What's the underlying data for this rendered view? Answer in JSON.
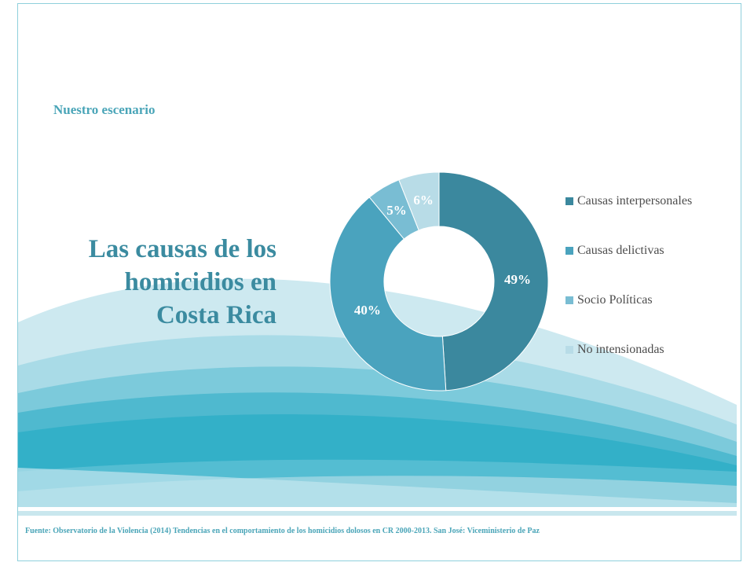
{
  "header": {
    "subtitle": "Nuestro escenario"
  },
  "title": {
    "line1": "Las causas de los",
    "line2": "homicidios  en",
    "line3": "Costa Rica"
  },
  "chart_data": {
    "type": "pie",
    "donut": true,
    "categories": [
      "Causas interpersonales",
      "Causas delictivas",
      "Socio Políticas",
      "No intensionadas"
    ],
    "values": [
      49,
      40,
      5,
      6
    ],
    "value_labels": [
      "49%",
      "40%",
      "5%",
      "6%"
    ],
    "colors": [
      "#3b889e",
      "#4aa3be",
      "#79bdd3",
      "#b8dce7"
    ],
    "legend_position": "right"
  },
  "footer": {
    "source": "Fuente: Observatorio de la Violencia (2014) Tendencias en el comportamiento de los homicidios dolosos en CR 2000-2013. San José: Viceministerio de Paz"
  }
}
